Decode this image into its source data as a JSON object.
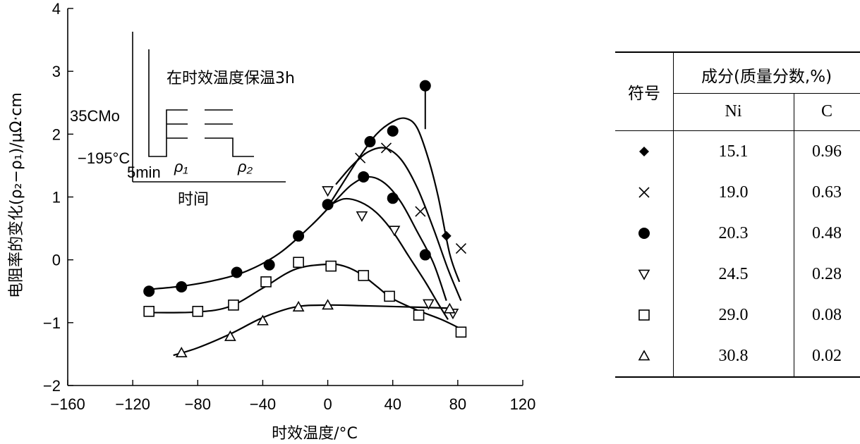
{
  "chart_data": {
    "type": "scatter",
    "xlabel": "时效温度/°C",
    "ylabel": "电阻率的变化(ρ₂−ρ₁)/μΩ·cm",
    "xlim": [
      -160,
      120
    ],
    "ylim": [
      -2,
      4
    ],
    "xticks": [
      -160,
      -120,
      -80,
      -40,
      0,
      40,
      80,
      120
    ],
    "yticks": [
      -2,
      -1,
      0,
      1,
      2,
      3,
      4
    ],
    "xtick_labels": [
      "−160",
      "−120",
      "−80",
      "−40",
      "0",
      "40",
      "80",
      "120"
    ],
    "ytick_labels": [
      "−2",
      "−1",
      "0",
      "1",
      "2",
      "3",
      "4"
    ],
    "series": [
      {
        "name": "◆",
        "ni": "15.1",
        "c": "0.96",
        "marker": "diamond",
        "points": [
          [
            73,
            0.38
          ]
        ],
        "curve": [
          [
            -1,
            0.8
          ],
          [
            10,
            1.25
          ],
          [
            20,
            1.65
          ],
          [
            30,
            2.0
          ],
          [
            40,
            2.2
          ],
          [
            48,
            2.25
          ],
          [
            55,
            2.1
          ],
          [
            62,
            1.6
          ],
          [
            68,
            1.0
          ],
          [
            75,
            0.1
          ],
          [
            81,
            -0.35
          ]
        ]
      },
      {
        "name": "×",
        "ni": "19.0",
        "c": "0.63",
        "marker": "cross",
        "points": [
          [
            20,
            1.62
          ],
          [
            36,
            1.78
          ],
          [
            57,
            0.77
          ],
          [
            82,
            0.18
          ]
        ],
        "curve": [
          [
            5,
            1.2
          ],
          [
            15,
            1.5
          ],
          [
            25,
            1.72
          ],
          [
            35,
            1.78
          ],
          [
            45,
            1.6
          ],
          [
            55,
            1.15
          ],
          [
            65,
            0.5
          ],
          [
            74,
            -0.15
          ],
          [
            82,
            -0.65
          ]
        ]
      },
      {
        "name": "●",
        "ni": "20.3",
        "c": "0.48",
        "marker": "circle",
        "points": [
          [
            -110,
            -0.5
          ],
          [
            -90,
            -0.43
          ],
          [
            -56,
            -0.2
          ],
          [
            -36,
            -0.08
          ],
          [
            -18,
            0.38
          ],
          [
            0,
            0.88
          ],
          [
            26,
            1.88
          ],
          [
            40,
            2.05
          ],
          [
            60,
            2.77
          ],
          [
            22,
            1.32
          ],
          [
            40,
            0.98
          ],
          [
            60,
            0.08
          ]
        ],
        "curve": [
          [
            -110,
            -0.47
          ],
          [
            -90,
            -0.42
          ],
          [
            -70,
            -0.33
          ],
          [
            -50,
            -0.18
          ],
          [
            -30,
            0.1
          ],
          [
            -10,
            0.55
          ],
          [
            5,
            0.95
          ],
          [
            15,
            1.2
          ],
          [
            25,
            1.32
          ],
          [
            35,
            1.22
          ],
          [
            45,
            0.92
          ],
          [
            55,
            0.45
          ],
          [
            65,
            -0.05
          ],
          [
            73,
            -0.65
          ]
        ]
      },
      {
        "name": "▽",
        "ni": "24.5",
        "c": "0.28",
        "marker": "tri-down",
        "points": [
          [
            0,
            1.1
          ],
          [
            21,
            0.7
          ],
          [
            41,
            0.47
          ],
          [
            62,
            -0.7
          ],
          [
            77,
            -0.85
          ]
        ],
        "curve": [
          [
            0,
            0.85
          ],
          [
            10,
            0.97
          ],
          [
            20,
            0.92
          ],
          [
            30,
            0.75
          ],
          [
            40,
            0.45
          ],
          [
            50,
            0.05
          ],
          [
            60,
            -0.35
          ],
          [
            68,
            -0.7
          ],
          [
            74,
            -0.95
          ]
        ]
      },
      {
        "name": "□",
        "ni": "29.0",
        "c": "0.08",
        "marker": "square",
        "points": [
          [
            -110,
            -0.82
          ],
          [
            -80,
            -0.82
          ],
          [
            -58,
            -0.72
          ],
          [
            -38,
            -0.35
          ],
          [
            -18,
            -0.04
          ],
          [
            2,
            -0.1
          ],
          [
            22,
            -0.25
          ],
          [
            38,
            -0.58
          ],
          [
            56,
            -0.88
          ],
          [
            82,
            -1.15
          ]
        ],
        "curve": [
          [
            -110,
            -0.84
          ],
          [
            -80,
            -0.83
          ],
          [
            -60,
            -0.74
          ],
          [
            -40,
            -0.45
          ],
          [
            -20,
            -0.15
          ],
          [
            0,
            -0.07
          ],
          [
            10,
            -0.1
          ],
          [
            20,
            -0.22
          ],
          [
            30,
            -0.42
          ],
          [
            40,
            -0.62
          ],
          [
            55,
            -0.8
          ],
          [
            70,
            -0.95
          ],
          [
            82,
            -1.1
          ]
        ]
      },
      {
        "name": "△",
        "ni": "30.8",
        "c": "0.02",
        "marker": "triangle",
        "points": [
          [
            -90,
            -1.48
          ],
          [
            -60,
            -1.22
          ],
          [
            -40,
            -0.97
          ],
          [
            -18,
            -0.75
          ],
          [
            0,
            -0.72
          ],
          [
            75,
            -0.78
          ]
        ],
        "curve": [
          [
            -95,
            -1.52
          ],
          [
            -80,
            -1.4
          ],
          [
            -60,
            -1.18
          ],
          [
            -40,
            -0.92
          ],
          [
            -20,
            -0.75
          ],
          [
            0,
            -0.72
          ],
          [
            20,
            -0.73
          ],
          [
            50,
            -0.75
          ],
          [
            75,
            -0.77
          ]
        ]
      }
    ],
    "extra_lines": [
      {
        "desc": "vertical-stem",
        "points": [
          [
            60,
            2.77
          ],
          [
            60,
            2.08
          ]
        ]
      }
    ]
  },
  "inset": {
    "title": "在时效温度保温3h",
    "label_alloy": "35CMo",
    "label_temp": "−195°C",
    "label_time": "5min",
    "label_rho1": "ρ₁",
    "label_rho2": "ρ₂",
    "xlabel": "时间"
  },
  "legend": {
    "col_symbol": "符号",
    "col_comp": "成分(质量分数,%)",
    "col_ni": "Ni",
    "col_c": "C",
    "rows": [
      {
        "symbol": "diamond",
        "ni": "15.1",
        "c": "0.96"
      },
      {
        "symbol": "cross",
        "ni": "19.0",
        "c": "0.63"
      },
      {
        "symbol": "circle",
        "ni": "20.3",
        "c": "0.48"
      },
      {
        "symbol": "tri-down",
        "ni": "24.5",
        "c": "0.28"
      },
      {
        "symbol": "square",
        "ni": "29.0",
        "c": "0.08"
      },
      {
        "symbol": "triangle",
        "ni": "30.8",
        "c": "0.02"
      }
    ]
  }
}
